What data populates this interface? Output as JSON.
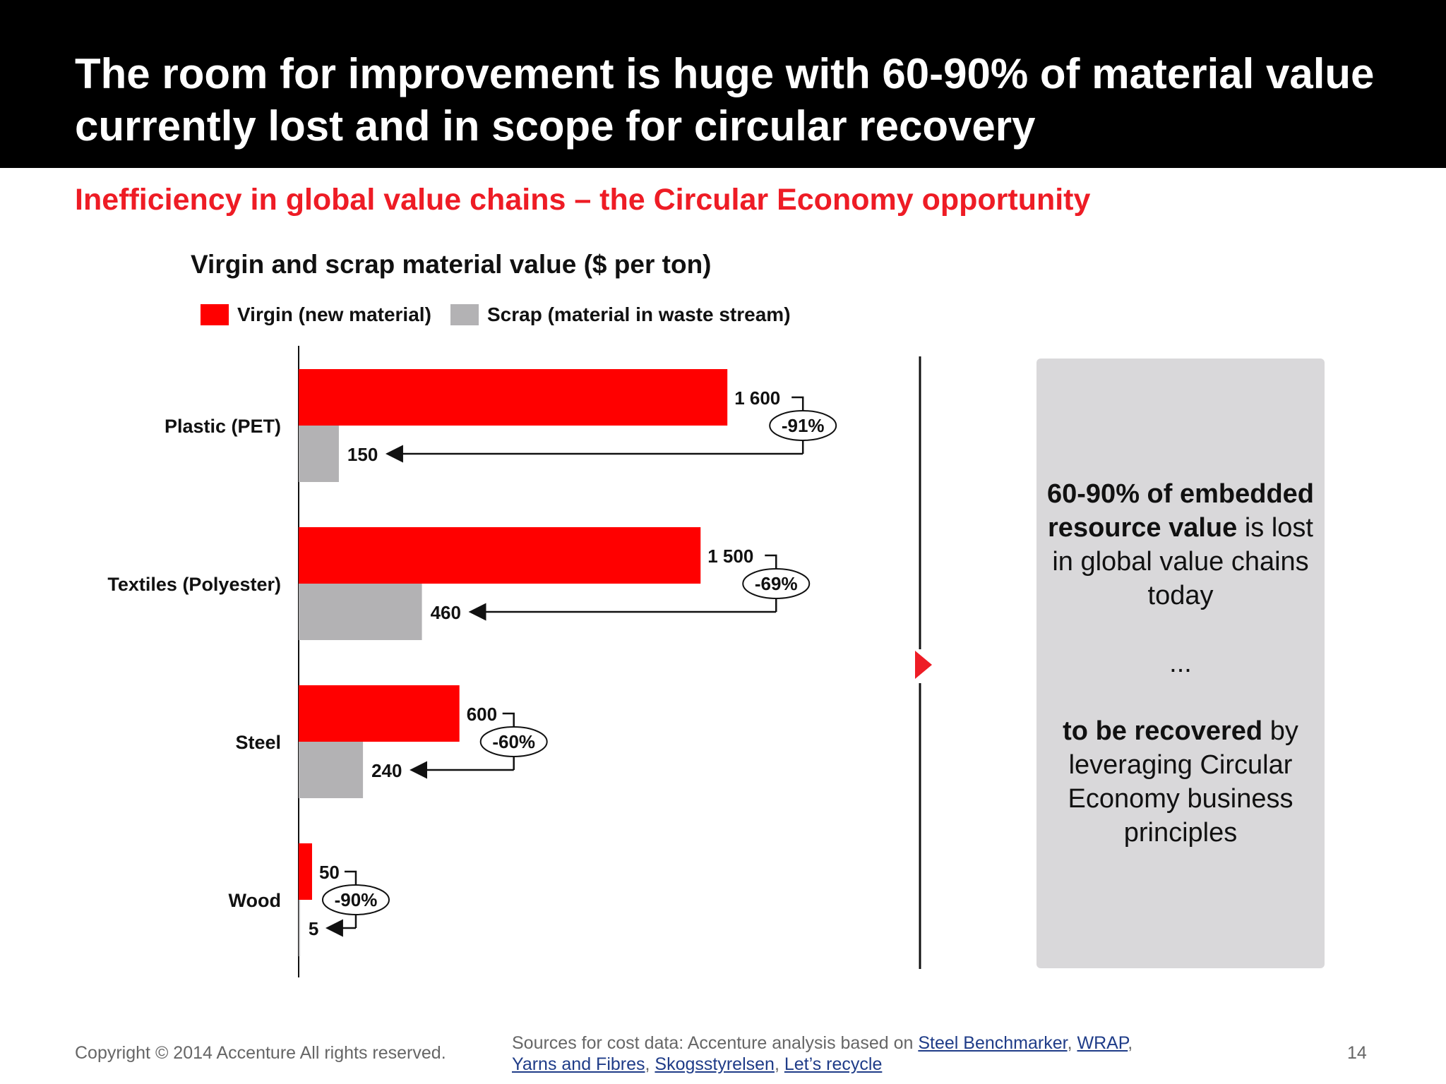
{
  "slide": {
    "title": "The room for improvement is huge with 60-90% of material value currently lost and in scope for circular recovery",
    "subtitle": "Inefficiency in global value chains – the Circular Economy opportunity"
  },
  "chart_data": {
    "type": "bar",
    "orientation": "horizontal",
    "title": "Virgin and scrap material value ($ per ton)",
    "xlabel": "",
    "ylabel": "",
    "grid": false,
    "legend": "top-left",
    "categories": [
      "Plastic (PET)",
      "Textiles (Polyester)",
      "Steel",
      "Wood"
    ],
    "series": [
      {
        "name": "Virgin (new material)",
        "color": "#ff0000",
        "values": [
          1600,
          1500,
          600,
          50
        ],
        "labels": [
          "1 600",
          "1 500",
          "600",
          "50"
        ]
      },
      {
        "name": "Scrap (material in waste stream)",
        "color": "#b3b2b4",
        "values": [
          150,
          460,
          240,
          5
        ],
        "labels": [
          "150",
          "460",
          "240",
          "5"
        ]
      }
    ],
    "annotations": [
      "-91%",
      "-69%",
      "-60%",
      "-90%"
    ],
    "xlim": [
      0,
      1600
    ]
  },
  "callout": {
    "line1_bold": "60-90% of embedded resource value",
    "line1_rest": " is lost in global value chains today",
    "ellipsis": "...",
    "line2_bold": "to be recovered",
    "line2_rest": " by leveraging Circular Economy business principles"
  },
  "footer": {
    "copyright": "Copyright © 2014 Accenture All rights reserved.",
    "sources_prefix": "Sources for cost data: Accenture analysis based on ",
    "links": [
      "Steel Benchmarker",
      "WRAP",
      "Yarns and Fibres",
      "Skogsstyrelsen",
      "Let’s recycle"
    ],
    "page": "14"
  }
}
